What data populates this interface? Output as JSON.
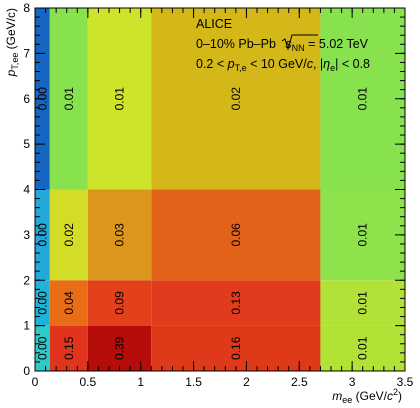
{
  "chart_data": {
    "type": "heatmap",
    "title": "",
    "xlabel": "m_ee (GeV/c²)",
    "xlabel_main": "m",
    "xlabel_sub": "ee",
    "xlabel_unit": " (GeV/",
    "xlabel_unit_sup": "2",
    "xlabel_unit_end": ")",
    "ylabel": "p_T,ee (GeV/c)",
    "ylabel_main": "p",
    "ylabel_sub": "T,ee",
    "ylabel_unit": " (GeV/c)",
    "xlim": [
      0,
      3.5
    ],
    "ylim": [
      0,
      8
    ],
    "x_edges": [
      0,
      0.14,
      0.5,
      1.1,
      2.7,
      3.5
    ],
    "y_edges": [
      0,
      1,
      2,
      4,
      8
    ],
    "x_ticks": [
      0,
      0.5,
      1,
      1.5,
      2,
      2.5,
      3,
      3.5
    ],
    "x_tick_labels": [
      "0",
      "0.5",
      "1",
      "1.5",
      "2",
      "2.5",
      "3",
      "3.5"
    ],
    "y_ticks": [
      0,
      1,
      2,
      3,
      4,
      5,
      6,
      7,
      8
    ],
    "y_tick_labels": [
      "0",
      "1",
      "2",
      "3",
      "4",
      "5",
      "6",
      "7",
      "8"
    ],
    "cells": [
      {
        "x0": 0,
        "x1": 0.14,
        "y0": 0,
        "y1": 1,
        "value": 0.0,
        "label": "0.00",
        "color": "#2ec9c9"
      },
      {
        "x0": 0.14,
        "x1": 0.5,
        "y0": 0,
        "y1": 1,
        "value": 0.15,
        "label": "0.15",
        "color": "#e1341c"
      },
      {
        "x0": 0.5,
        "x1": 1.1,
        "y0": 0,
        "y1": 1,
        "value": 0.39,
        "label": "0.39",
        "color": "#b40d0a"
      },
      {
        "x0": 1.1,
        "x1": 2.7,
        "y0": 0,
        "y1": 1,
        "value": 0.16,
        "label": "0.16",
        "color": "#de3a1a"
      },
      {
        "x0": 2.7,
        "x1": 3.5,
        "y0": 0,
        "y1": 1,
        "value": 0.01,
        "label": "0.01",
        "color": "#b3e236"
      },
      {
        "x0": 0,
        "x1": 0.14,
        "y0": 1,
        "y1": 2,
        "value": 0.0,
        "label": "0.00",
        "color": "#1fb3d6"
      },
      {
        "x0": 0.14,
        "x1": 0.5,
        "y0": 1,
        "y1": 2,
        "value": 0.04,
        "label": "0.04",
        "color": "#e86d16"
      },
      {
        "x0": 0.5,
        "x1": 1.1,
        "y0": 1,
        "y1": 2,
        "value": 0.09,
        "label": "0.09",
        "color": "#e2411c"
      },
      {
        "x0": 1.1,
        "x1": 2.7,
        "y0": 1,
        "y1": 2,
        "value": 0.13,
        "label": "0.13",
        "color": "#df3b1c"
      },
      {
        "x0": 2.7,
        "x1": 3.5,
        "y0": 1,
        "y1": 2,
        "value": 0.01,
        "label": "0.01",
        "color": "#b2e238"
      },
      {
        "x0": 0,
        "x1": 0.14,
        "y0": 2,
        "y1": 4,
        "value": 0.0,
        "label": "0.00",
        "color": "#21a9dc"
      },
      {
        "x0": 0.14,
        "x1": 0.5,
        "y0": 2,
        "y1": 4,
        "value": 0.02,
        "label": "0.02",
        "color": "#d3dc26"
      },
      {
        "x0": 0.5,
        "x1": 1.1,
        "y0": 2,
        "y1": 4,
        "value": 0.03,
        "label": "0.03",
        "color": "#dd961d"
      },
      {
        "x0": 1.1,
        "x1": 2.7,
        "y0": 2,
        "y1": 4,
        "value": 0.06,
        "label": "0.06",
        "color": "#e36219"
      },
      {
        "x0": 2.7,
        "x1": 3.5,
        "y0": 2,
        "y1": 4,
        "value": 0.01,
        "label": "0.01",
        "color": "#8ee24c"
      },
      {
        "x0": 0,
        "x1": 0.14,
        "y0": 4,
        "y1": 8,
        "value": 0.0,
        "label": "0.00",
        "color": "#1565c3"
      },
      {
        "x0": 0.14,
        "x1": 0.5,
        "y0": 4,
        "y1": 8,
        "value": 0.01,
        "label": "0.01",
        "color": "#88e24e"
      },
      {
        "x0": 0.5,
        "x1": 1.1,
        "y0": 4,
        "y1": 8,
        "value": 0.01,
        "label": "0.01",
        "color": "#cde42a"
      },
      {
        "x0": 1.1,
        "x1": 2.7,
        "y0": 4,
        "y1": 8,
        "value": 0.02,
        "label": "0.02",
        "color": "#d4b819"
      },
      {
        "x0": 2.7,
        "x1": 3.5,
        "y0": 4,
        "y1": 8,
        "value": 0.01,
        "label": "0.01",
        "color": "#88e24e"
      }
    ],
    "annotations": {
      "experiment": "ALICE",
      "line2_pre": "0–10% Pb–Pb ",
      "line2_s": "s",
      "line2_nn": "NN",
      "line2_post": " = 5.02 TeV",
      "line3_a": "0.2 < ",
      "line3_p": "p",
      "line3_psub": "T,e",
      "line3_b": " < 10 GeV/",
      "line3_c": "c",
      "line3_d": ", |",
      "line3_eta": "η",
      "line3_etasub": "e",
      "line3_e": "| < 0.8"
    }
  }
}
